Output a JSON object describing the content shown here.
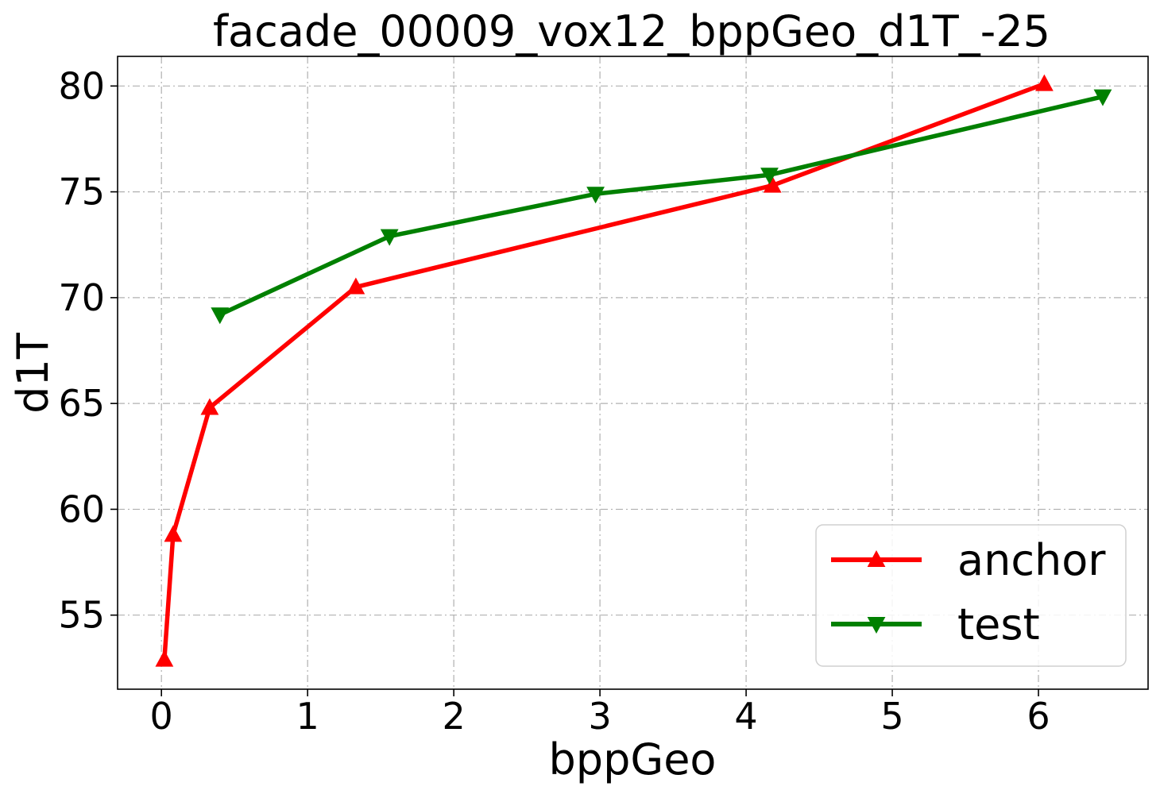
{
  "chart_data": {
    "type": "line",
    "title": "facade_00009_vox12_bppGeo_d1T_-25",
    "xlabel": "bppGeo",
    "ylabel": "d1T",
    "xlim": [
      -0.3,
      6.75
    ],
    "ylim": [
      51.5,
      81.4
    ],
    "xticks": [
      0,
      1,
      2,
      3,
      4,
      5,
      6
    ],
    "yticks": [
      55,
      60,
      65,
      70,
      75,
      80
    ],
    "grid": true,
    "legend_position": "lower-right",
    "series": [
      {
        "name": "anchor",
        "color": "#ff0000",
        "marker": "triangle-up",
        "x": [
          0.02,
          0.08,
          0.33,
          1.33,
          4.18,
          6.04
        ],
        "y": [
          52.9,
          58.8,
          64.8,
          70.5,
          75.3,
          80.1
        ]
      },
      {
        "name": "test",
        "color": "#008000",
        "marker": "triangle-down",
        "x": [
          0.4,
          1.56,
          2.97,
          4.16,
          6.44
        ],
        "y": [
          69.2,
          72.9,
          74.9,
          75.8,
          79.5
        ]
      }
    ]
  }
}
